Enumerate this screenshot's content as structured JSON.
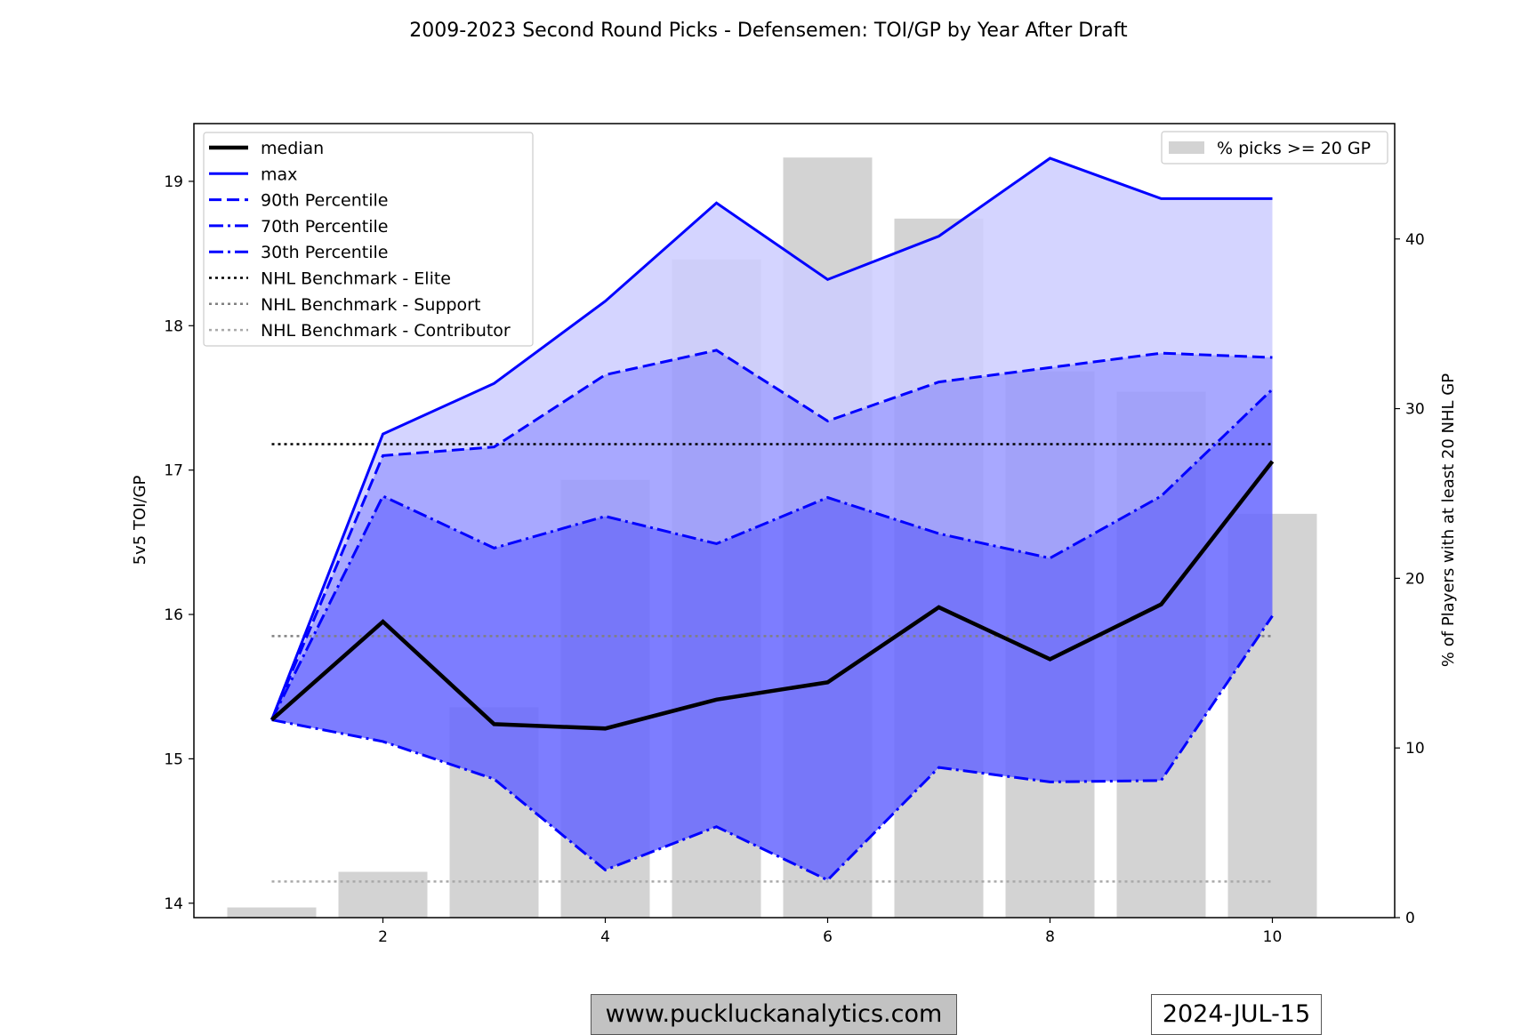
{
  "chart_data": {
    "type": "line",
    "title": "2009-2023 Second Round Picks - Defensemen: TOI/GP by Year After Draft",
    "xlabel": "",
    "ylabel": "5v5 TOI/GP",
    "y2label": "% of Players with at least 20 NHL GP",
    "xlim": [
      0.3,
      11.1
    ],
    "ylim": [
      13.9,
      19.4
    ],
    "y2lim": [
      0,
      46.8
    ],
    "x_ticks": [
      2,
      4,
      6,
      8,
      10
    ],
    "y_ticks": [
      14,
      15,
      16,
      17,
      18,
      19
    ],
    "y2_ticks": [
      0,
      10,
      20,
      30,
      40
    ],
    "x": [
      1,
      2,
      3,
      4,
      5,
      6,
      7,
      8,
      9,
      10
    ],
    "bars": {
      "name": "% picks >= 20 GP",
      "color": "#d3d3d3",
      "values": [
        0.6,
        2.7,
        12.4,
        25.8,
        38.8,
        44.8,
        41.2,
        32.2,
        31.0,
        23.8
      ]
    },
    "series": [
      {
        "name": "median",
        "style": "solid",
        "color": "#000000",
        "values": [
          15.27,
          15.95,
          15.24,
          15.21,
          15.41,
          15.53,
          16.05,
          15.69,
          16.07,
          17.06
        ]
      },
      {
        "name": "max",
        "style": "solid",
        "color": "#0000ff",
        "values": [
          15.27,
          17.25,
          17.6,
          18.17,
          18.85,
          18.32,
          18.62,
          19.16,
          18.88,
          18.88
        ]
      },
      {
        "name": "90th Percentile",
        "style": "dashed",
        "color": "#0000ff",
        "values": [
          15.27,
          17.1,
          17.16,
          17.66,
          17.83,
          17.34,
          17.61,
          17.71,
          17.81,
          17.78
        ]
      },
      {
        "name": "70th Percentile",
        "style": "dashdot",
        "color": "#0000ff",
        "values": [
          15.27,
          16.82,
          16.46,
          16.68,
          16.49,
          16.81,
          16.56,
          16.39,
          16.82,
          17.56
        ]
      },
      {
        "name": "30th Percentile",
        "style": "dashdot",
        "color": "#0000ff",
        "values": [
          15.27,
          15.12,
          14.86,
          14.23,
          14.53,
          14.16,
          14.94,
          14.84,
          14.85,
          15.99
        ]
      }
    ],
    "benchmarks": [
      {
        "name": "NHL Benchmark - Elite",
        "value": 17.18,
        "color": "#000000"
      },
      {
        "name": "NHL Benchmark - Support",
        "value": 15.85,
        "color": "#808080"
      },
      {
        "name": "NHL Benchmark - Contributor",
        "value": 14.15,
        "color": "#a9a9a9"
      }
    ],
    "bands": [
      {
        "from": "90th Percentile",
        "to": "max",
        "color": "#ccccff"
      },
      {
        "from": "70th Percentile",
        "to": "90th Percentile",
        "color": "#9999ff"
      },
      {
        "from": "30th Percentile",
        "to": "70th Percentile",
        "color": "#6666ff"
      },
      {
        "from": "min",
        "to": "30th Percentile",
        "color": "#2a2aff"
      }
    ],
    "min_values": [
      15.27,
      15.12,
      14.86,
      14.23,
      14.53,
      14.16,
      14.94,
      14.84,
      14.85,
      15.99
    ],
    "legend_left": "top-left",
    "legend_right": "top-right",
    "grid": false
  },
  "footer": {
    "website": "www.puckluckanalytics.com",
    "date": "2024-JUL-15"
  }
}
